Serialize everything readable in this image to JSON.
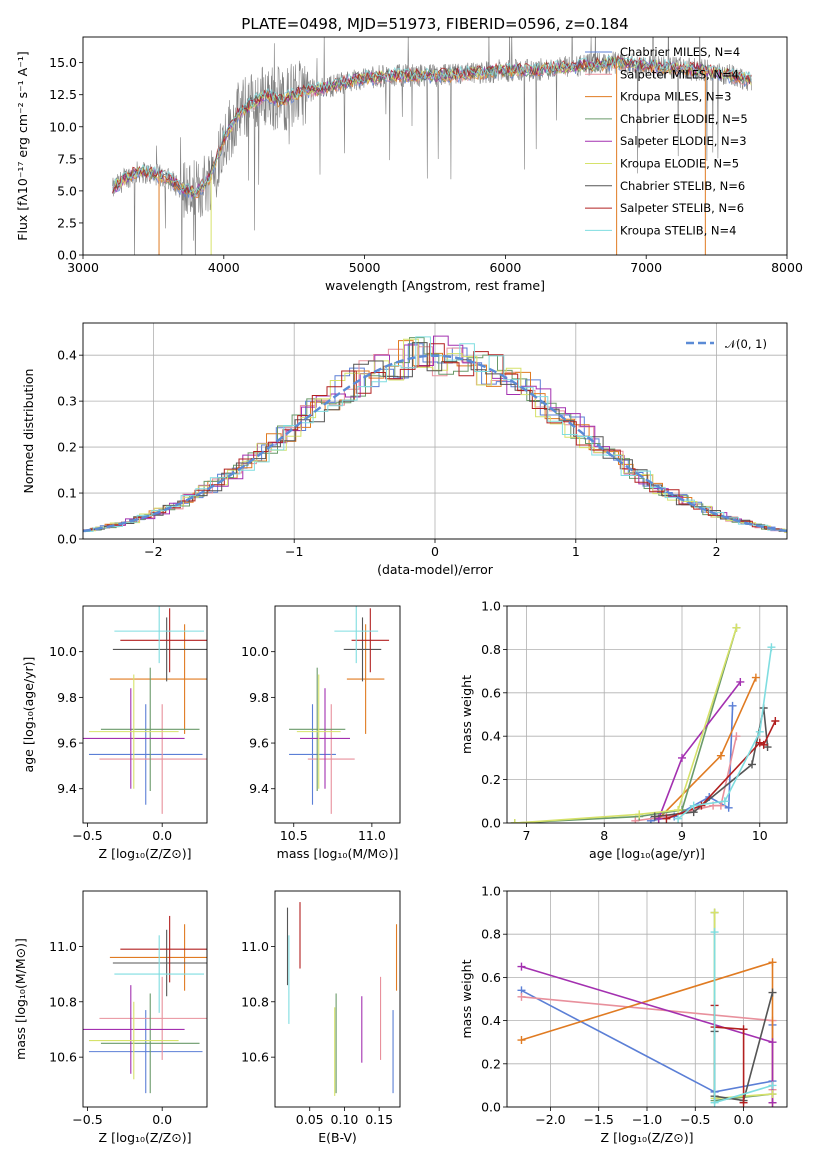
{
  "chart_data": [
    {
      "type": "line",
      "title": "PLATE=0498, MJD=51973, FIBERID=0596, z=0.184",
      "xlabel": "wavelength [Angstrom, rest frame]",
      "ylabel": "Flux [fλ10⁻¹⁷ erg cm⁻² s⁻¹ A⁻¹]",
      "xlim": [
        3000,
        8000
      ],
      "ylim": [
        0,
        17
      ],
      "xticks": [
        "3000",
        "4000",
        "5000",
        "6000",
        "7000",
        "8000"
      ],
      "yticks": [
        "0.0",
        "2.5",
        "5.0",
        "7.5",
        "10.0",
        "12.5",
        "15.0"
      ],
      "grid": false,
      "legend_position": "top-right",
      "observed_spectrum_color": "#808080",
      "continuum": {
        "x": [
          3200,
          3300,
          3400,
          3500,
          3600,
          3700,
          3800,
          3900,
          4000,
          4100,
          4200,
          4300,
          4400,
          4500,
          4600,
          4700,
          4800,
          4900,
          5000,
          5200,
          5400,
          5600,
          5800,
          6000,
          6200,
          6400,
          6600,
          6800,
          7000,
          7200,
          7400,
          7600,
          7800
        ],
        "y": [
          5.0,
          6.0,
          6.5,
          6.3,
          6.0,
          5.2,
          4.8,
          6.0,
          9.0,
          11.0,
          11.8,
          12.5,
          12.0,
          12.5,
          12.8,
          13.0,
          13.3,
          13.6,
          13.8,
          14.0,
          14.0,
          14.0,
          14.2,
          14.4,
          14.4,
          14.6,
          14.8,
          15.0,
          14.8,
          14.6,
          14.4,
          14.0,
          13.5
        ]
      },
      "series": [
        {
          "name": "Chabrier MILES, N_SSP=4",
          "color": "#5b7fd6"
        },
        {
          "name": "Salpeter MILES, N_SSP=4",
          "color": "#e8909c"
        },
        {
          "name": "Kroupa MILES, N_SSP=3",
          "color": "#e07b22"
        },
        {
          "name": "Chabrier ELODIE, N_SSP=5",
          "color": "#6a9a6a"
        },
        {
          "name": "Salpeter ELODIE, N_SSP=3",
          "color": "#a330b0"
        },
        {
          "name": "Kroupa ELODIE, N_SSP=5",
          "color": "#d6e26a"
        },
        {
          "name": "Chabrier STELIB, N_SSP=6",
          "color": "#555555"
        },
        {
          "name": "Salpeter STELIB, N_SSP=6",
          "color": "#b22020"
        },
        {
          "name": "Kroupa STELIB, N_SSP=4",
          "color": "#7fdde0"
        }
      ]
    },
    {
      "type": "line",
      "xlabel": "(data-model)/error",
      "ylabel": "Normed distribution",
      "xlim": [
        -2.5,
        2.5
      ],
      "ylim": [
        0,
        0.47
      ],
      "xticks": [
        "−2",
        "−1",
        "0",
        "1",
        "2"
      ],
      "yticks": [
        "0.0",
        "0.1",
        "0.2",
        "0.3",
        "0.4"
      ],
      "grid": true,
      "legend_position": "top-right",
      "gaussian_label": "𝒩(0, 1)",
      "gaussian_color": "#5b8bd6",
      "hist_bins": 48
    },
    {
      "type": "scatter",
      "xlabel": "Z [log₁₀(Z/Z⊙)]",
      "ylabel": "age  [log₁₀(age/yr)]",
      "xlim": [
        -0.53,
        0.3
      ],
      "ylim": [
        9.25,
        10.2
      ],
      "xticks": [
        "−0.5",
        "0.0"
      ],
      "yticks": [
        "9.4",
        "9.6",
        "9.8",
        "10.0"
      ],
      "points": [
        {
          "x": -0.11,
          "y": 9.55,
          "xerr": 0.38,
          "yerr": 0.22,
          "color": "#5b7fd6"
        },
        {
          "x": -0.0,
          "y": 9.53,
          "xerr": 0.42,
          "yerr": 0.24,
          "color": "#e8909c"
        },
        {
          "x": 0.15,
          "y": 9.88,
          "xerr": 0.5,
          "yerr": 0.24,
          "color": "#e07b22"
        },
        {
          "x": -0.08,
          "y": 9.66,
          "xerr": 0.33,
          "yerr": 0.27,
          "color": "#6a9a6a"
        },
        {
          "x": -0.21,
          "y": 9.62,
          "xerr": 0.36,
          "yerr": 0.22,
          "color": "#a330b0"
        },
        {
          "x": -0.19,
          "y": 9.65,
          "xerr": 0.3,
          "yerr": 0.25,
          "color": "#d6e26a"
        },
        {
          "x": 0.03,
          "y": 10.01,
          "xerr": 0.36,
          "yerr": 0.14,
          "color": "#555555"
        },
        {
          "x": 0.05,
          "y": 10.05,
          "xerr": 0.33,
          "yerr": 0.14,
          "color": "#b22020"
        },
        {
          "x": -0.02,
          "y": 10.09,
          "xerr": 0.3,
          "yerr": 0.14,
          "color": "#7fdde0"
        }
      ]
    },
    {
      "type": "scatter",
      "xlabel": "mass [log₁₀(M/M⊙)]",
      "ylabel": "",
      "xlim": [
        10.38,
        11.18
      ],
      "ylim": [
        9.25,
        10.2
      ],
      "xticks": [
        "10.5",
        "11.0"
      ],
      "yticks": [
        "9.4",
        "9.6",
        "9.8",
        "10.0"
      ],
      "points": [
        {
          "x": 10.62,
          "y": 9.55,
          "xerr": 0.15,
          "yerr": 0.22,
          "color": "#5b7fd6"
        },
        {
          "x": 10.74,
          "y": 9.53,
          "xerr": 0.15,
          "yerr": 0.24,
          "color": "#e8909c"
        },
        {
          "x": 10.96,
          "y": 9.88,
          "xerr": 0.12,
          "yerr": 0.24,
          "color": "#e07b22"
        },
        {
          "x": 10.65,
          "y": 9.66,
          "xerr": 0.18,
          "yerr": 0.27,
          "color": "#6a9a6a"
        },
        {
          "x": 10.7,
          "y": 9.62,
          "xerr": 0.16,
          "yerr": 0.22,
          "color": "#a330b0"
        },
        {
          "x": 10.66,
          "y": 9.65,
          "xerr": 0.14,
          "yerr": 0.25,
          "color": "#d6e26a"
        },
        {
          "x": 10.94,
          "y": 10.01,
          "xerr": 0.12,
          "yerr": 0.14,
          "color": "#555555"
        },
        {
          "x": 10.99,
          "y": 10.05,
          "xerr": 0.12,
          "yerr": 0.14,
          "color": "#b22020"
        },
        {
          "x": 10.9,
          "y": 10.09,
          "xerr": 0.14,
          "yerr": 0.14,
          "color": "#7fdde0"
        }
      ]
    },
    {
      "type": "line",
      "xlabel": "age  [log₁₀(age/yr)]",
      "ylabel": "mass weight",
      "xlim": [
        6.75,
        10.35
      ],
      "ylim": [
        0,
        1
      ],
      "xticks": [
        "7",
        "8",
        "9",
        "10"
      ],
      "yticks": [
        "0.0",
        "0.2",
        "0.4",
        "0.6",
        "0.8",
        "1.0"
      ],
      "grid": true,
      "series": [
        {
          "color": "#5b7fd6",
          "x": [
            8.6,
            8.9,
            9.35,
            9.6,
            9.65
          ],
          "y": [
            0.01,
            0.03,
            0.12,
            0.07,
            0.54
          ]
        },
        {
          "color": "#e8909c",
          "x": [
            8.4,
            8.8,
            9.4,
            9.5,
            9.7
          ],
          "y": [
            0.01,
            0.03,
            0.08,
            0.08,
            0.4
          ]
        },
        {
          "color": "#e07b22",
          "x": [
            8.7,
            9.5,
            9.95
          ],
          "y": [
            0.02,
            0.31,
            0.67
          ]
        },
        {
          "color": "#6a9a6a",
          "x": [
            6.85,
            8.45,
            9.0,
            9.7
          ],
          "y": [
            0.0,
            0.03,
            0.06,
            0.9
          ]
        },
        {
          "color": "#a330b0",
          "x": [
            8.7,
            9.0,
            9.75
          ],
          "y": [
            0.02,
            0.3,
            0.65
          ]
        },
        {
          "color": "#d6e26a",
          "x": [
            6.85,
            8.45,
            8.95,
            9.7
          ],
          "y": [
            0.0,
            0.04,
            0.06,
            0.9
          ]
        },
        {
          "color": "#555555",
          "x": [
            8.65,
            9.15,
            9.9,
            10.05,
            10.1
          ],
          "y": [
            0.03,
            0.05,
            0.27,
            0.53,
            0.35
          ]
        },
        {
          "color": "#b22020",
          "x": [
            8.8,
            9.25,
            10.0,
            10.05,
            10.2
          ],
          "y": [
            0.02,
            0.08,
            0.37,
            0.36,
            0.47
          ]
        },
        {
          "color": "#7fdde0",
          "x": [
            8.95,
            9.15,
            9.55,
            10.0,
            10.15
          ],
          "y": [
            0.02,
            0.08,
            0.1,
            0.42,
            0.81
          ]
        }
      ]
    },
    {
      "type": "scatter",
      "xlabel": "Z [log₁₀(Z/Z⊙)]",
      "ylabel": "mass [log₁₀(M/M⊙)]",
      "xlim": [
        -0.53,
        0.3
      ],
      "ylim": [
        10.42,
        11.2
      ],
      "xticks": [
        "−0.5",
        "0.0"
      ],
      "yticks": [
        "10.6",
        "10.8",
        "11.0"
      ],
      "points": [
        {
          "x": -0.11,
          "y": 10.62,
          "xerr": 0.38,
          "yerr": 0.15,
          "color": "#5b7fd6"
        },
        {
          "x": -0.0,
          "y": 10.74,
          "xerr": 0.42,
          "yerr": 0.15,
          "color": "#e8909c"
        },
        {
          "x": 0.15,
          "y": 10.96,
          "xerr": 0.5,
          "yerr": 0.12,
          "color": "#e07b22"
        },
        {
          "x": -0.08,
          "y": 10.65,
          "xerr": 0.33,
          "yerr": 0.18,
          "color": "#6a9a6a"
        },
        {
          "x": -0.21,
          "y": 10.7,
          "xerr": 0.36,
          "yerr": 0.16,
          "color": "#a330b0"
        },
        {
          "x": -0.19,
          "y": 10.66,
          "xerr": 0.3,
          "yerr": 0.14,
          "color": "#d6e26a"
        },
        {
          "x": 0.03,
          "y": 10.94,
          "xerr": 0.36,
          "yerr": 0.12,
          "color": "#555555"
        },
        {
          "x": 0.05,
          "y": 10.99,
          "xerr": 0.33,
          "yerr": 0.12,
          "color": "#b22020"
        },
        {
          "x": -0.02,
          "y": 10.9,
          "xerr": 0.3,
          "yerr": 0.14,
          "color": "#7fdde0"
        }
      ]
    },
    {
      "type": "scatter",
      "xlabel": "E(B-V)",
      "ylabel": "",
      "xlim": [
        0.0,
        0.18
      ],
      "ylim": [
        10.42,
        11.2
      ],
      "xticks": [
        "0.05",
        "0.10",
        "0.15"
      ],
      "yticks": [
        "10.6",
        "10.8",
        "11.0"
      ],
      "points": [
        {
          "x": 0.17,
          "y": 10.62,
          "yerr": 0.15,
          "color": "#5b7fd6"
        },
        {
          "x": 0.152,
          "y": 10.74,
          "yerr": 0.15,
          "color": "#e8909c"
        },
        {
          "x": 0.175,
          "y": 10.96,
          "yerr": 0.12,
          "color": "#e07b22"
        },
        {
          "x": 0.088,
          "y": 10.65,
          "yerr": 0.18,
          "color": "#6a9a6a"
        },
        {
          "x": 0.125,
          "y": 10.7,
          "yerr": 0.12,
          "color": "#a330b0"
        },
        {
          "x": 0.086,
          "y": 10.62,
          "yerr": 0.16,
          "color": "#d6e26a"
        },
        {
          "x": 0.018,
          "y": 11.0,
          "yerr": 0.14,
          "color": "#555555"
        },
        {
          "x": 0.036,
          "y": 11.04,
          "yerr": 0.12,
          "color": "#b22020"
        },
        {
          "x": 0.02,
          "y": 10.88,
          "yerr": 0.16,
          "color": "#7fdde0"
        }
      ]
    },
    {
      "type": "line",
      "xlabel": "Z [log₁₀(Z/Z⊙)]",
      "ylabel": "mass weight",
      "xlim": [
        -2.45,
        0.45
      ],
      "ylim": [
        0,
        1
      ],
      "xticks": [
        "−2.0",
        "−1.5",
        "−1.0",
        "−0.5",
        "0.0"
      ],
      "yticks": [
        "0.0",
        "0.2",
        "0.4",
        "0.6",
        "0.8",
        "1.0"
      ],
      "grid": true,
      "series": [
        {
          "color": "#5b7fd6",
          "x": [
            -2.3,
            -0.3,
            0.3,
            0.3
          ],
          "y": [
            0.54,
            0.07,
            0.12,
            0.38
          ]
        },
        {
          "color": "#e8909c",
          "x": [
            -2.3,
            0.3,
            0.3
          ],
          "y": [
            0.51,
            0.4,
            0.08
          ]
        },
        {
          "color": "#e07b22",
          "x": [
            -2.3,
            0.3,
            0.3
          ],
          "y": [
            0.31,
            0.67,
            0.02
          ]
        },
        {
          "color": "#6a9a6a",
          "x": [
            -0.3,
            -0.3,
            0.3
          ],
          "y": [
            0.9,
            0.03,
            0.06
          ]
        },
        {
          "color": "#a330b0",
          "x": [
            -2.3,
            0.3,
            0.3
          ],
          "y": [
            0.65,
            0.3,
            0.02
          ]
        },
        {
          "color": "#d6e26a",
          "x": [
            -0.3,
            -0.3,
            0.3
          ],
          "y": [
            0.9,
            0.04,
            0.06
          ]
        },
        {
          "color": "#555555",
          "x": [
            -0.3,
            -0.3,
            0.0,
            0.3
          ],
          "y": [
            0.35,
            0.05,
            0.03,
            0.53
          ]
        },
        {
          "color": "#b22020",
          "x": [
            -0.3,
            -0.3,
            0.0,
            0.0
          ],
          "y": [
            0.47,
            0.37,
            0.36,
            0.02
          ]
        },
        {
          "color": "#7fdde0",
          "x": [
            -0.3,
            -0.3,
            0.3
          ],
          "y": [
            0.81,
            0.02,
            0.1
          ]
        }
      ]
    }
  ]
}
